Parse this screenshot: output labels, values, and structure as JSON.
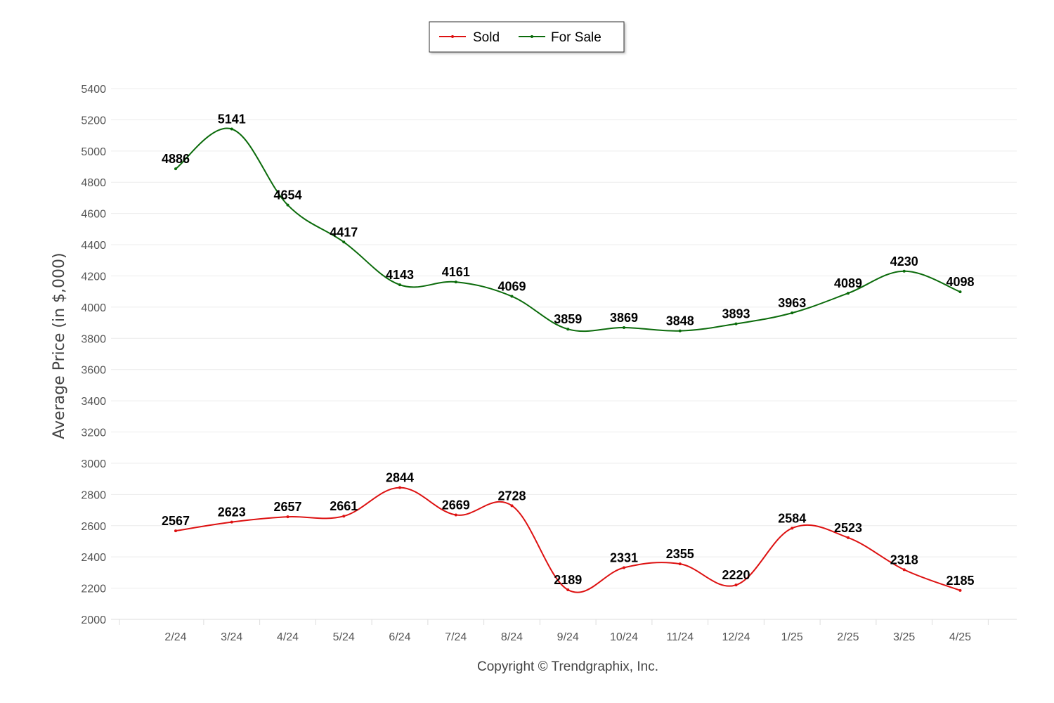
{
  "chart_data": {
    "type": "line",
    "categories": [
      "2/24",
      "3/24",
      "4/24",
      "5/24",
      "6/24",
      "7/24",
      "8/24",
      "9/24",
      "10/24",
      "11/24",
      "12/24",
      "1/25",
      "2/25",
      "3/25",
      "4/25"
    ],
    "series": [
      {
        "name": "Sold",
        "color": "#dd1111",
        "values": [
          2567,
          2623,
          2657,
          2661,
          2844,
          2669,
          2728,
          2189,
          2331,
          2355,
          2220,
          2584,
          2523,
          2318,
          2185
        ]
      },
      {
        "name": "For Sale",
        "color": "#0b6b0b",
        "values": [
          4886,
          5141,
          4654,
          4417,
          4143,
          4161,
          4069,
          3859,
          3869,
          3848,
          3893,
          3963,
          4089,
          4230,
          4098
        ]
      }
    ],
    "ylabel": "Average Price  (in $,000)",
    "xlabel": "",
    "ylim": [
      2000,
      5400
    ],
    "yticks": [
      2000,
      2200,
      2400,
      2600,
      2800,
      3000,
      3200,
      3400,
      3600,
      3800,
      4000,
      4200,
      4400,
      4600,
      4800,
      5000,
      5200,
      5400
    ],
    "grid": true,
    "legend": "top-center",
    "footer": "Copyright © Trendgraphix, Inc."
  }
}
